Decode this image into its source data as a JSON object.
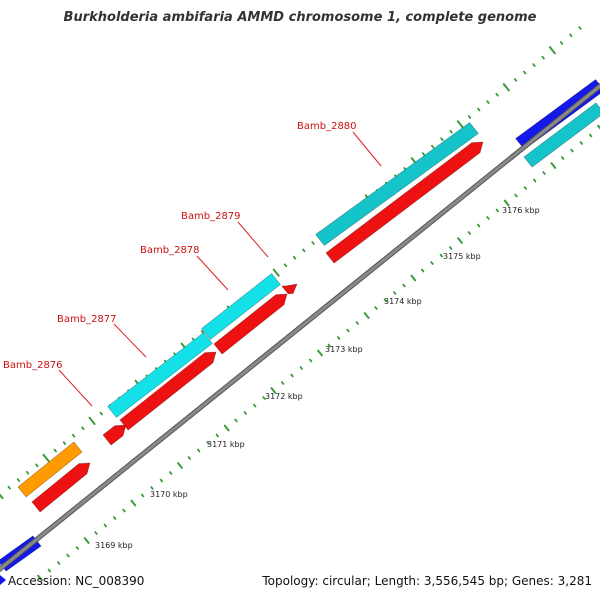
{
  "title": "Burkholderia ambifaria AMMD chromosome 1, complete genome",
  "footer": {
    "accession": "Accession: NC_008390",
    "topology": "Topology: circular; Length: 3,556,545 bp; Genes: 3,281"
  },
  "colors": {
    "backbone": "#8a8a8a",
    "tick_major": "#2e7d2e",
    "tick_minor": "#3a9a3a",
    "leader": "#e02020",
    "label": "#cc1111",
    "cds_red": "#ee1111",
    "cds_cyan": "#14e0e8",
    "cds_teal": "#14c4c8",
    "cds_orange": "#ff9a00",
    "cds_blue": "#1418e8"
  },
  "scale_labels": [
    "3169 kbp",
    "3170 kbp",
    "3171 kbp",
    "3172 kbp",
    "3173 kbp",
    "3174 kbp",
    "3175 kbp",
    "3176 kbp"
  ],
  "gene_labels": [
    "Bamb_2876",
    "Bamb_2877",
    "Bamb_2878",
    "Bamb_2879",
    "Bamb_2880"
  ]
}
